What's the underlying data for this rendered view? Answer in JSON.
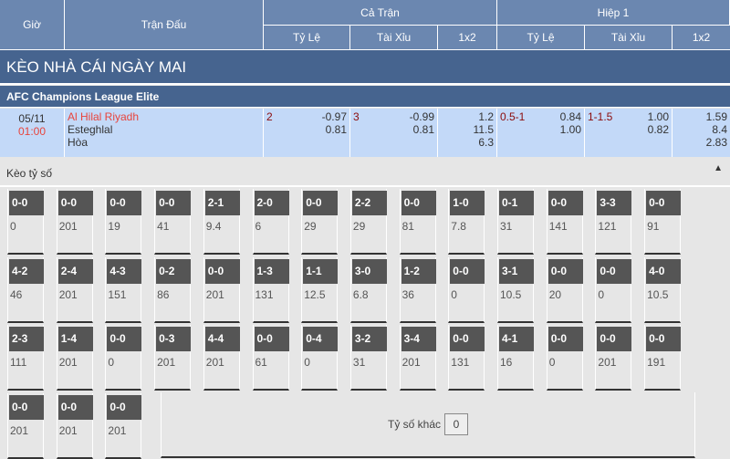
{
  "header": {
    "time": "Giờ",
    "match": "Trận Đấu",
    "full": "Cả Trận",
    "half": "Hiệp 1",
    "handicap": "Tỷ Lệ",
    "ou": "Tài Xỉu",
    "x12": "1x2"
  },
  "banner": "KÈO NHÀ CÁI NGÀY MAI",
  "league": "AFC Champions League Elite",
  "match": {
    "date": "05/11",
    "time": "01:00",
    "home": "Al Hilal Riyadh",
    "away": "Esteghlal",
    "draw": "Hòa",
    "full": {
      "hdp_line": "2",
      "hdp_home": "-0.97",
      "hdp_away": "0.81",
      "ou_line": "3",
      "ou_over": "-0.99",
      "ou_under": "0.81",
      "x1": "1.2",
      "x2": "11.5",
      "xx": "6.3"
    },
    "half": {
      "hdp_line": "0.5-1",
      "hdp_home": "0.84",
      "hdp_away": "1.00",
      "ou_line": "1-1.5",
      "ou_over": "1.00",
      "ou_under": "0.82",
      "x1": "1.59",
      "x2": "8.4",
      "xx": "2.83"
    }
  },
  "correct_score": {
    "title": "Kèo tỷ số",
    "collapse_icon": "triangle-up",
    "cells": [
      [
        "0-0",
        "0"
      ],
      [
        "0-0",
        "201"
      ],
      [
        "0-0",
        "19"
      ],
      [
        "0-0",
        "41"
      ],
      [
        "2-1",
        "9.4"
      ],
      [
        "2-0",
        "6"
      ],
      [
        "0-0",
        "29"
      ],
      [
        "2-2",
        "29"
      ],
      [
        "0-0",
        "81"
      ],
      [
        "1-0",
        "7.8"
      ],
      [
        "0-1",
        "31"
      ],
      [
        "0-0",
        "141"
      ],
      [
        "3-3",
        "121"
      ],
      [
        "0-0",
        "91"
      ],
      [
        "4-2",
        "46"
      ],
      [
        "2-4",
        "201"
      ],
      [
        "4-3",
        "151"
      ],
      [
        "0-2",
        "86"
      ],
      [
        "0-0",
        "201"
      ],
      [
        "1-3",
        "131"
      ],
      [
        "1-1",
        "12.5"
      ],
      [
        "3-0",
        "6.8"
      ],
      [
        "1-2",
        "36"
      ],
      [
        "0-0",
        "0"
      ],
      [
        "3-1",
        "10.5"
      ],
      [
        "0-0",
        "20"
      ],
      [
        "0-0",
        "0"
      ],
      [
        "4-0",
        "10.5"
      ],
      [
        "2-3",
        "111"
      ],
      [
        "1-4",
        "201"
      ],
      [
        "0-0",
        "0"
      ],
      [
        "0-3",
        "201"
      ],
      [
        "4-4",
        "201"
      ],
      [
        "0-0",
        "61"
      ],
      [
        "0-4",
        "0"
      ],
      [
        "3-2",
        "31"
      ],
      [
        "3-4",
        "201"
      ],
      [
        "0-0",
        "131"
      ],
      [
        "4-1",
        "16"
      ],
      [
        "0-0",
        "0"
      ],
      [
        "0-0",
        "201"
      ],
      [
        "0-0",
        "191"
      ],
      [
        "0-0",
        "201"
      ],
      [
        "0-0",
        "201"
      ],
      [
        "0-0",
        "201"
      ]
    ],
    "other_label": "Tỷ số khác",
    "other_value": "0"
  }
}
